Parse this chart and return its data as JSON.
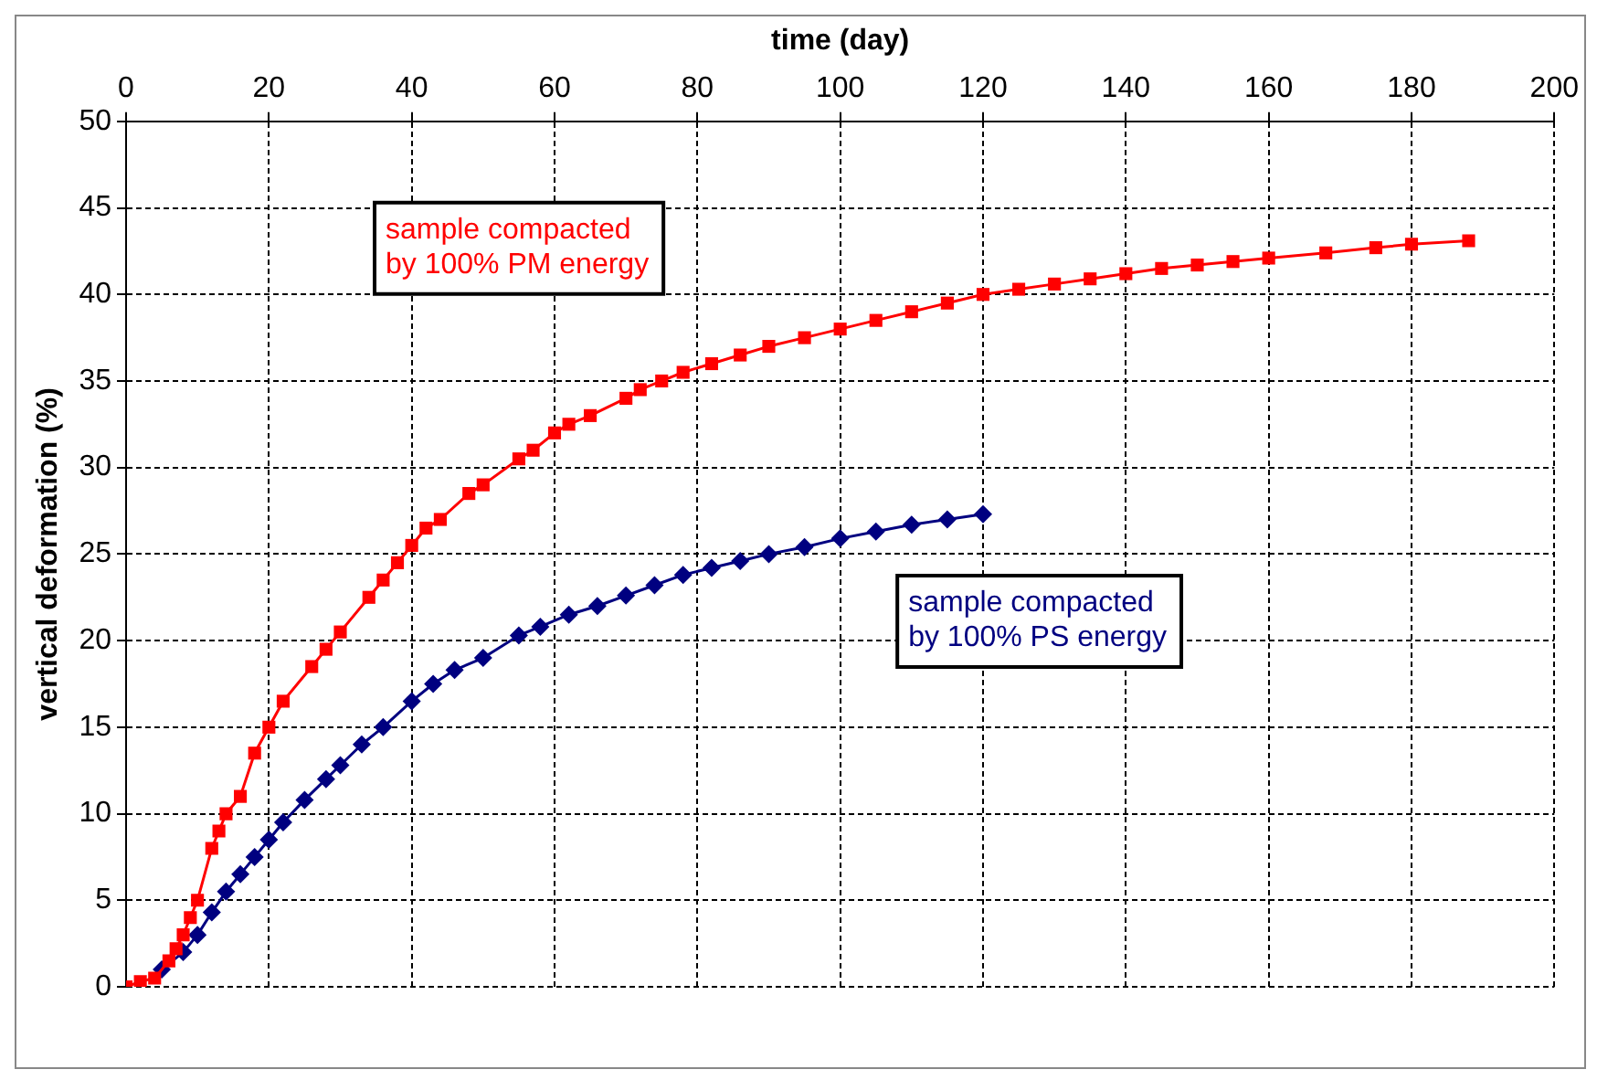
{
  "chart_data": {
    "type": "line",
    "xlabel": "time (day)",
    "ylabel": "vertical deformation (%)",
    "xlim": [
      0,
      200
    ],
    "xticks": [
      0,
      20,
      40,
      60,
      80,
      100,
      120,
      140,
      160,
      180,
      200
    ],
    "ylim": [
      0,
      50
    ],
    "yticks": [
      0,
      5,
      10,
      15,
      20,
      25,
      30,
      35,
      40,
      45,
      50
    ],
    "grid": true,
    "legend": false,
    "series": [
      {
        "name": "sample compacted by 100% PM energy",
        "color": "#ff0000",
        "marker": "square",
        "x": [
          0,
          2,
          4,
          6,
          7,
          8,
          9,
          10,
          12,
          13,
          14,
          16,
          18,
          20,
          22,
          26,
          28,
          30,
          34,
          36,
          38,
          40,
          42,
          44,
          48,
          50,
          55,
          57,
          60,
          62,
          65,
          70,
          72,
          75,
          78,
          82,
          86,
          90,
          95,
          100,
          105,
          110,
          115,
          120,
          125,
          130,
          135,
          140,
          145,
          150,
          155,
          160,
          168,
          175,
          180,
          188
        ],
        "values": [
          0,
          0.3,
          0.5,
          1.5,
          2.2,
          3,
          4,
          5,
          8,
          9,
          10,
          11,
          13.5,
          15,
          16.5,
          18.5,
          19.5,
          20.5,
          22.5,
          23.5,
          24.5,
          25.5,
          26.5,
          27,
          28.5,
          29,
          30.5,
          31,
          32,
          32.5,
          33,
          34,
          34.5,
          35,
          35.5,
          36,
          36.5,
          37,
          37.5,
          38,
          38.5,
          39,
          39.5,
          40,
          40.3,
          40.6,
          40.9,
          41.2,
          41.5,
          41.7,
          41.9,
          42.1,
          42.4,
          42.7,
          42.9,
          43.1
        ]
      },
      {
        "name": "sample compacted by 100% PS energy",
        "color": "#000080",
        "marker": "diamond",
        "x": [
          5,
          8,
          10,
          12,
          14,
          16,
          18,
          20,
          22,
          25,
          28,
          30,
          33,
          36,
          40,
          43,
          46,
          50,
          55,
          58,
          62,
          66,
          70,
          74,
          78,
          82,
          86,
          90,
          95,
          100,
          105,
          110,
          115,
          120
        ],
        "values": [
          1,
          2,
          3,
          4.3,
          5.5,
          6.5,
          7.5,
          8.5,
          9.5,
          10.8,
          12,
          12.8,
          14,
          15,
          16.5,
          17.5,
          18.3,
          19,
          20.3,
          20.8,
          21.5,
          22,
          22.6,
          23.2,
          23.8,
          24.2,
          24.6,
          25,
          25.4,
          25.9,
          26.3,
          26.7,
          27,
          27.3
        ]
      }
    ]
  }
}
